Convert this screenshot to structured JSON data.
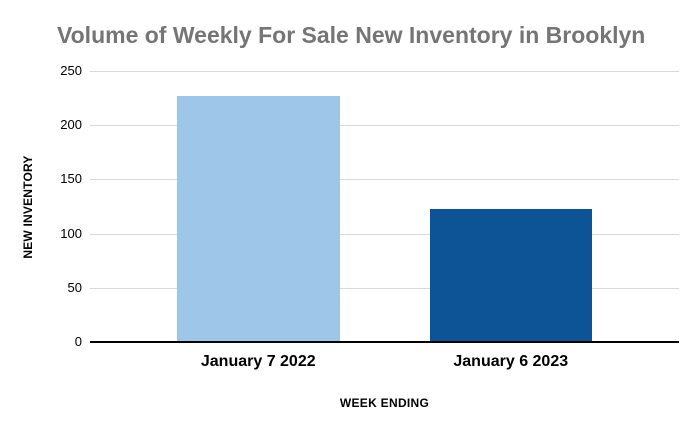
{
  "chart_data": {
    "type": "bar",
    "title": "Volume of Weekly For Sale New Inventory in Brooklyn",
    "categories": [
      "January 7 2022",
      "January 6 2023"
    ],
    "values": [
      226,
      122
    ],
    "bar_colors": [
      "#9EC6E8",
      "#0D5496"
    ],
    "xlabel": "WEEK ENDING",
    "ylabel": "NEW INVENTORY",
    "ylim": [
      0,
      250
    ],
    "yticks": [
      0,
      50,
      100,
      150,
      200,
      250
    ],
    "grid": true,
    "legend": "none"
  },
  "styles": {
    "background": "#ffffff",
    "title_color": "#757575",
    "grid_color": "#D9D9D9",
    "axis_color": "#000000",
    "text_color": "#000000"
  }
}
